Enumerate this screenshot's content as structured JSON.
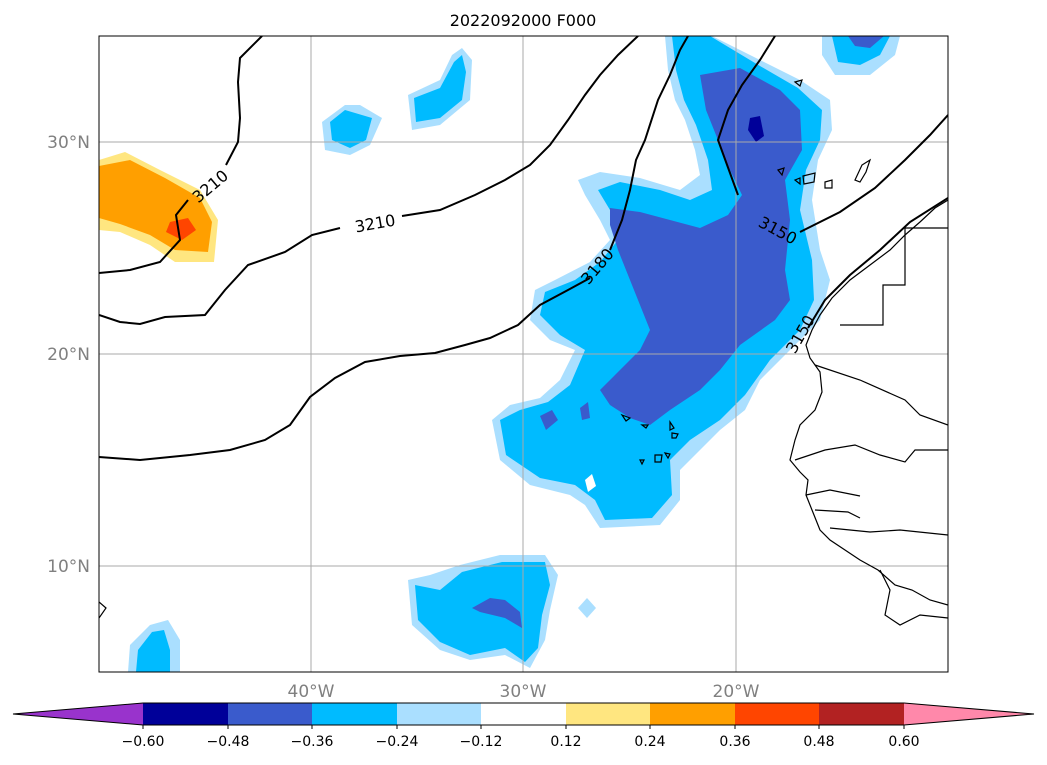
{
  "title": "2022092000 F000",
  "map": {
    "lat_labels": [
      "30°N",
      "20°N",
      "10°N"
    ],
    "lon_labels": [
      "40°W",
      "30°W",
      "20°W"
    ],
    "contour_labels": [
      "3210",
      "3210",
      "3180",
      "3150",
      "3150"
    ]
  },
  "colorbar": {
    "ticks": [
      "−0.60",
      "−0.48",
      "−0.36",
      "−0.24",
      "−0.12",
      "0.12",
      "0.24",
      "0.36",
      "0.48",
      "0.60"
    ],
    "colors": [
      "#9933cc",
      "#000099",
      "#3a5bcc",
      "#00bbff",
      "#aadfff",
      "#ffffff",
      "#ffe680",
      "#ff9f00",
      "#ff4500",
      "#b22222",
      "#ff88aa"
    ]
  }
}
